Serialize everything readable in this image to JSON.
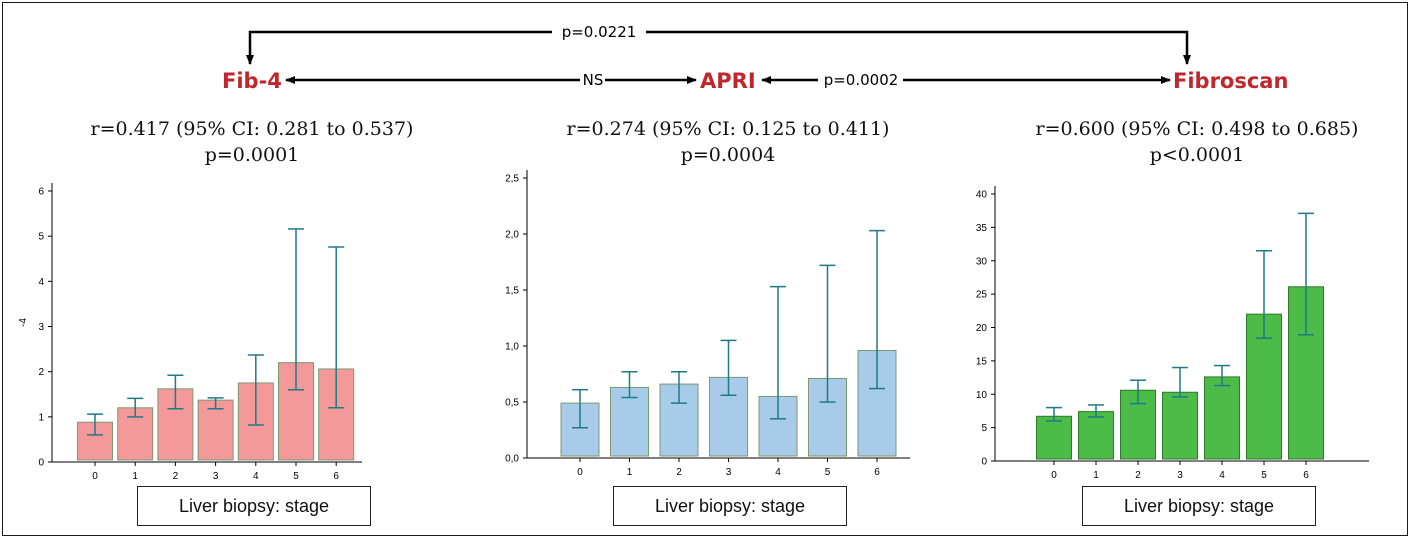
{
  "header": {
    "methods": {
      "left": "Fib-4",
      "center": "APRI",
      "right": "Fibroscan"
    },
    "comparisons": {
      "top": "p=0.0221",
      "left_center": "NS",
      "center_right": "p=0.0002"
    },
    "colors": {
      "method_label": "#c0272d",
      "arrow": "#000000"
    }
  },
  "panels": [
    {
      "stat_r": "r=0.417 (95% CI: 0.281 to 0.537)",
      "stat_p": "p=0.0001",
      "caption": "Liver biopsy: stage"
    },
    {
      "stat_r": "r=0.274 (95% CI: 0.125 to 0.411)",
      "stat_p": "p=0.0004",
      "caption": "Liver biopsy: stage"
    },
    {
      "stat_r": "r=0.600 (95% CI: 0.498 to 0.685)",
      "stat_p": "p<0.0001",
      "caption": "Liver biopsy: stage"
    }
  ],
  "chart_data": [
    {
      "type": "bar",
      "title": "",
      "xlabel": "Liver biopsy: stage",
      "ylabel": "-4",
      "categories": [
        "0",
        "1",
        "2",
        "3",
        "4",
        "5",
        "6"
      ],
      "values": [
        0.88,
        1.2,
        1.62,
        1.37,
        1.75,
        2.2,
        2.06
      ],
      "error_low": [
        0.6,
        1.0,
        1.18,
        1.18,
        0.82,
        1.6,
        1.2
      ],
      "error_high": [
        1.06,
        1.41,
        1.92,
        1.42,
        2.37,
        5.16,
        4.76
      ],
      "ylim": [
        0,
        6
      ],
      "yticks": [
        "0",
        "1",
        "2",
        "3",
        "4",
        "5",
        "6"
      ],
      "bar_color": "#f4999a",
      "bar_stroke": "#7a9a70",
      "error_color": "#1f7a87"
    },
    {
      "type": "bar",
      "title": "",
      "xlabel": "Liver biopsy: stage",
      "ylabel": "",
      "categories": [
        "0",
        "1",
        "2",
        "3",
        "4",
        "5",
        "6"
      ],
      "values": [
        0.49,
        0.63,
        0.66,
        0.72,
        0.55,
        0.71,
        0.96
      ],
      "error_low": [
        0.27,
        0.54,
        0.49,
        0.56,
        0.35,
        0.5,
        0.62
      ],
      "error_high": [
        0.61,
        0.77,
        0.77,
        1.05,
        1.53,
        1.72,
        2.03
      ],
      "ylim": [
        0,
        2.5
      ],
      "yticks": [
        "0,0",
        "0,5",
        "1,0",
        "1,5",
        "2,0",
        "2,5"
      ],
      "bar_color": "#a7cbe8",
      "bar_stroke": "#7a9a70",
      "error_color": "#1f7a87"
    },
    {
      "type": "bar",
      "title": "",
      "xlabel": "Liver biopsy: stage",
      "ylabel": "",
      "categories": [
        "0",
        "1",
        "2",
        "3",
        "4",
        "5",
        "6"
      ],
      "values": [
        6.7,
        7.4,
        10.6,
        10.3,
        12.6,
        22.0,
        26.1
      ],
      "error_low": [
        6.0,
        6.6,
        8.6,
        9.6,
        11.3,
        18.4,
        18.9
      ],
      "error_high": [
        8.0,
        8.4,
        12.1,
        14.0,
        14.3,
        31.5,
        37.1
      ],
      "ylim": [
        0,
        40
      ],
      "yticks": [
        "0",
        "5",
        "10",
        "15",
        "20",
        "25",
        "30",
        "35",
        "40"
      ],
      "bar_color": "#4dbb48",
      "bar_stroke": "#2f7a2a",
      "error_color": "#1f7a87"
    }
  ]
}
